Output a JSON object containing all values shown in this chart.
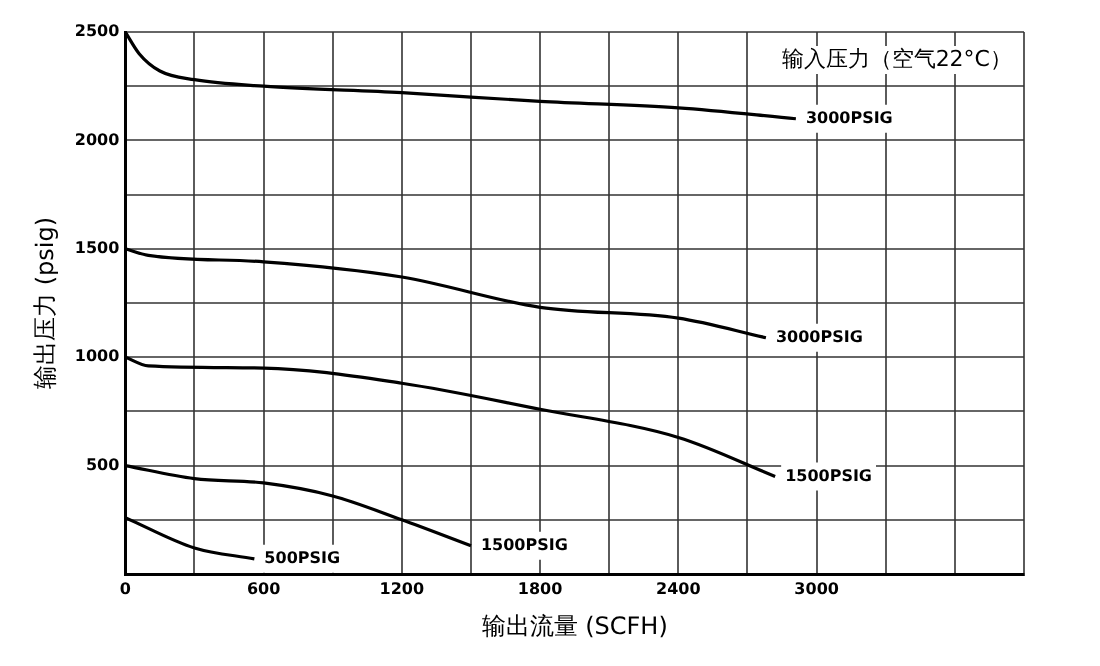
{
  "chart_data": {
    "type": "line",
    "xlabel": "输出流量 (SCFH)",
    "ylabel": "输出压力 (psig)",
    "annotations": [
      "输入压力（空气22°C）"
    ],
    "xlim": [
      0,
      3900
    ],
    "ylim": [
      0,
      2500
    ],
    "xticks": [
      0,
      {
        "value": 300,
        "label": null
      },
      600,
      {
        "value": 900,
        "label": null
      },
      1200,
      {
        "value": 1500,
        "label": null
      },
      1800,
      {
        "value": 2100,
        "label": null
      },
      2400,
      {
        "value": 2700,
        "label": null
      },
      3000,
      {
        "value": 3300,
        "label": null
      },
      {
        "value": 3600,
        "label": null
      },
      {
        "value": 3900,
        "label": null
      }
    ],
    "yticks": [
      {
        "value": 0,
        "label": null
      },
      {
        "value": 250,
        "label": null
      },
      500,
      {
        "value": 750,
        "label": null
      },
      1000,
      {
        "value": 1250,
        "label": null
      },
      1500,
      {
        "value": 1750,
        "label": null
      },
      2000,
      {
        "value": 2250,
        "label": null
      },
      2500
    ],
    "grid": true,
    "legend": false,
    "marker": "none",
    "line_style": "solid",
    "series": [
      {
        "name": "3000PSIG",
        "color": "#000000",
        "x": [
          0,
          60,
          150,
          300,
          600,
          1200,
          1800,
          2400,
          2910
        ],
        "values": [
          2500,
          2400,
          2320,
          2280,
          2250,
          2220,
          2180,
          2150,
          2100
        ]
      },
      {
        "name": "3000PSIG",
        "color": "#000000",
        "x": [
          0,
          100,
          600,
          1200,
          1800,
          2400,
          2780
        ],
        "values": [
          1500,
          1470,
          1440,
          1370,
          1230,
          1180,
          1090
        ]
      },
      {
        "name": "1500PSIG",
        "color": "#000000",
        "x": [
          0,
          100,
          600,
          1200,
          1800,
          2400,
          2820
        ],
        "values": [
          1000,
          960,
          950,
          880,
          760,
          630,
          450
        ]
      },
      {
        "name": "1500PSIG",
        "color": "#000000",
        "x": [
          0,
          300,
          600,
          900,
          1200,
          1500
        ],
        "values": [
          500,
          440,
          420,
          360,
          250,
          130
        ]
      },
      {
        "name": "500PSIG",
        "color": "#000000",
        "x": [
          0,
          300,
          560
        ],
        "values": [
          260,
          120,
          70
        ]
      }
    ]
  }
}
